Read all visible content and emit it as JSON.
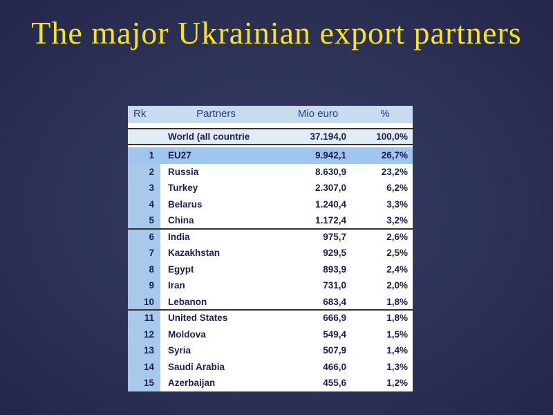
{
  "title": "The major Ukrainian export partners",
  "table": {
    "header": [
      "Rk",
      "Partners",
      "Mio euro",
      "%"
    ],
    "total": [
      "World (all countrie",
      "37.194,0",
      "100,0%"
    ],
    "rows": [
      [
        "1",
        "EU27",
        "9.942,1",
        "26,7%"
      ],
      [
        "2",
        "Russia",
        "8.630,9",
        "23,2%"
      ],
      [
        "3",
        "Turkey",
        "2.307,0",
        "6,2%"
      ],
      [
        "4",
        "Belarus",
        "1.240,4",
        "3,3%"
      ],
      [
        "5",
        "China",
        "1.172,4",
        "3,2%"
      ],
      [
        "6",
        "India",
        "975,7",
        "2,6%"
      ],
      [
        "7",
        "Kazakhstan",
        "929,5",
        "2,5%"
      ],
      [
        "8",
        "Egypt",
        "893,9",
        "2,4%"
      ],
      [
        "9",
        "Iran",
        "731,0",
        "2,0%"
      ],
      [
        "10",
        "Lebanon",
        "683,4",
        "1,8%"
      ],
      [
        "11",
        "United States",
        "666,9",
        "1,8%"
      ],
      [
        "12",
        "Moldova",
        "549,4",
        "1,5%"
      ],
      [
        "13",
        "Syria",
        "507,9",
        "1,4%"
      ],
      [
        "14",
        "Saudi Arabia",
        "466,0",
        "1,3%"
      ],
      [
        "15",
        "Azerbaijan",
        "455,6",
        "1,2%"
      ]
    ]
  }
}
